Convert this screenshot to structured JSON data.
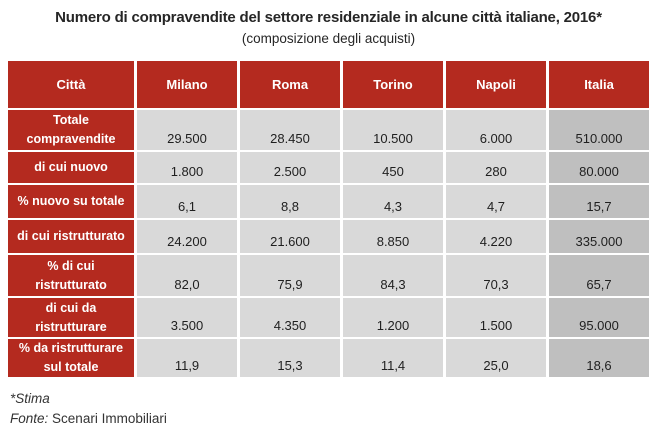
{
  "chart_data": {
    "type": "table",
    "title": "Numero di compravendite del settore residenziale in alcune città italiane, 2016*",
    "subtitle": "(composizione degli acquisti)",
    "columns": [
      "Città",
      "Milano",
      "Roma",
      "Torino",
      "Napoli",
      "Italia"
    ],
    "rows": [
      {
        "label": "Totale compravendite",
        "values": [
          "29.500",
          "28.450",
          "10.500",
          "6.000",
          "510.000"
        ]
      },
      {
        "label": "di cui nuovo",
        "values": [
          "1.800",
          "2.500",
          "450",
          "280",
          "80.000"
        ]
      },
      {
        "label": "% nuovo  su totale",
        "values": [
          "6,1",
          "8,8",
          "4,3",
          "4,7",
          "15,7"
        ]
      },
      {
        "label": "di cui ristrutturato",
        "values": [
          "24.200",
          "21.600",
          "8.850",
          "4.220",
          "335.000"
        ]
      },
      {
        "label": "% di cui ristrutturato",
        "values": [
          "82,0",
          "75,9",
          "84,3",
          "70,3",
          "65,7"
        ]
      },
      {
        "label": "di cui da ristrutturare",
        "values": [
          "3.500",
          "4.350",
          "1.200",
          "1.500",
          "95.000"
        ]
      },
      {
        "label": "% da ristrutturare sul totale",
        "values": [
          "11,9",
          "15,3",
          "11,4",
          "25,0",
          "18,6"
        ]
      }
    ],
    "highlight_column": "Italia",
    "footnote": "*Stima",
    "source_label": "Fonte:",
    "source_name": "Scenari Immobiliari"
  },
  "colors": {
    "header_red": "#b42a1f",
    "cell_gray": "#d9d9d9",
    "italia_gray": "#bfbfbf",
    "number_text": "#1f1f1f",
    "header_text": "#ffffff"
  }
}
